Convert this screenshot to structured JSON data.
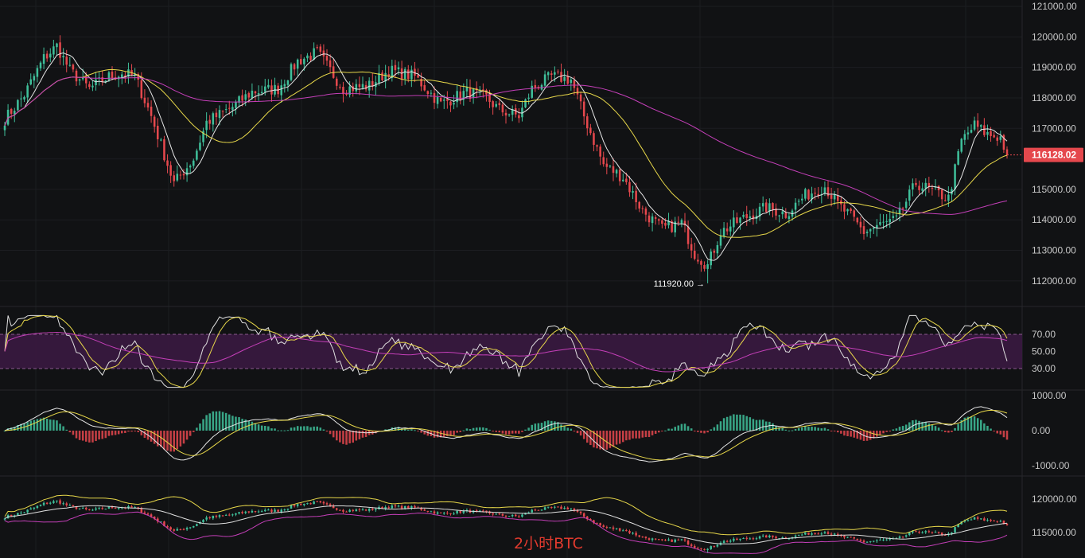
{
  "chart_data": {
    "type": "candlestick",
    "instrument": "BTC",
    "timeframe": "2h",
    "current_price": "116128.02",
    "low_annotation": "111920.00 →",
    "watermark": "2小时BTC",
    "colors": {
      "up": "#3fbf9a",
      "down": "#e5484d",
      "ma_fast": "#e6e6e6",
      "ma_mid": "#e8d84a",
      "ma_slow": "#c43fb8",
      "rsi_band": "#3a1a40",
      "background": "#111214",
      "grid": "#1c1d21",
      "price_tag": "#e5484d"
    },
    "price_panel": {
      "ylim": [
        111500,
        121000
      ],
      "ticks": [
        "121000.00",
        "120000.00",
        "119000.00",
        "118000.00",
        "117000.00",
        "116000.00",
        "115000.00",
        "114000.00",
        "113000.00",
        "112000.00"
      ],
      "close_anchors": [
        [
          0,
          117300
        ],
        [
          6,
          118100
        ],
        [
          12,
          119300
        ],
        [
          16,
          119700
        ],
        [
          20,
          118900
        ],
        [
          26,
          118300
        ],
        [
          32,
          118700
        ],
        [
          36,
          118800
        ],
        [
          40,
          118700
        ],
        [
          45,
          117400
        ],
        [
          52,
          115200
        ],
        [
          58,
          116000
        ],
        [
          62,
          117200
        ],
        [
          70,
          117700
        ],
        [
          76,
          118200
        ],
        [
          84,
          118300
        ],
        [
          90,
          119200
        ],
        [
          96,
          119500
        ],
        [
          104,
          118300
        ],
        [
          112,
          118400
        ],
        [
          118,
          118900
        ],
        [
          126,
          118700
        ],
        [
          134,
          117800
        ],
        [
          142,
          118200
        ],
        [
          148,
          118000
        ],
        [
          152,
          117600
        ],
        [
          158,
          117400
        ],
        [
          162,
          118300
        ],
        [
          168,
          118700
        ],
        [
          174,
          118600
        ],
        [
          178,
          117400
        ],
        [
          184,
          115800
        ],
        [
          190,
          115400
        ],
        [
          196,
          114300
        ],
        [
          202,
          113700
        ],
        [
          208,
          113900
        ],
        [
          212,
          112900
        ],
        [
          216,
          112500
        ],
        [
          220,
          113600
        ],
        [
          226,
          114000
        ],
        [
          234,
          114400
        ],
        [
          240,
          114200
        ],
        [
          246,
          114800
        ],
        [
          252,
          115100
        ],
        [
          256,
          114500
        ],
        [
          260,
          114100
        ],
        [
          264,
          113600
        ],
        [
          268,
          113800
        ],
        [
          274,
          114000
        ],
        [
          280,
          115200
        ],
        [
          286,
          114900
        ],
        [
          290,
          114700
        ],
        [
          294,
          116600
        ],
        [
          298,
          117100
        ],
        [
          302,
          116800
        ],
        [
          306,
          116700
        ],
        [
          308,
          116128
        ]
      ]
    },
    "rsi_panel": {
      "ticks": [
        "70.00",
        "50.00",
        "30.00"
      ]
    },
    "macd_panel": {
      "ticks": [
        "1000.00",
        "0.00",
        "-1000.00"
      ]
    },
    "boll_panel": {
      "ticks": [
        "120000.00",
        "115000.00"
      ]
    }
  }
}
